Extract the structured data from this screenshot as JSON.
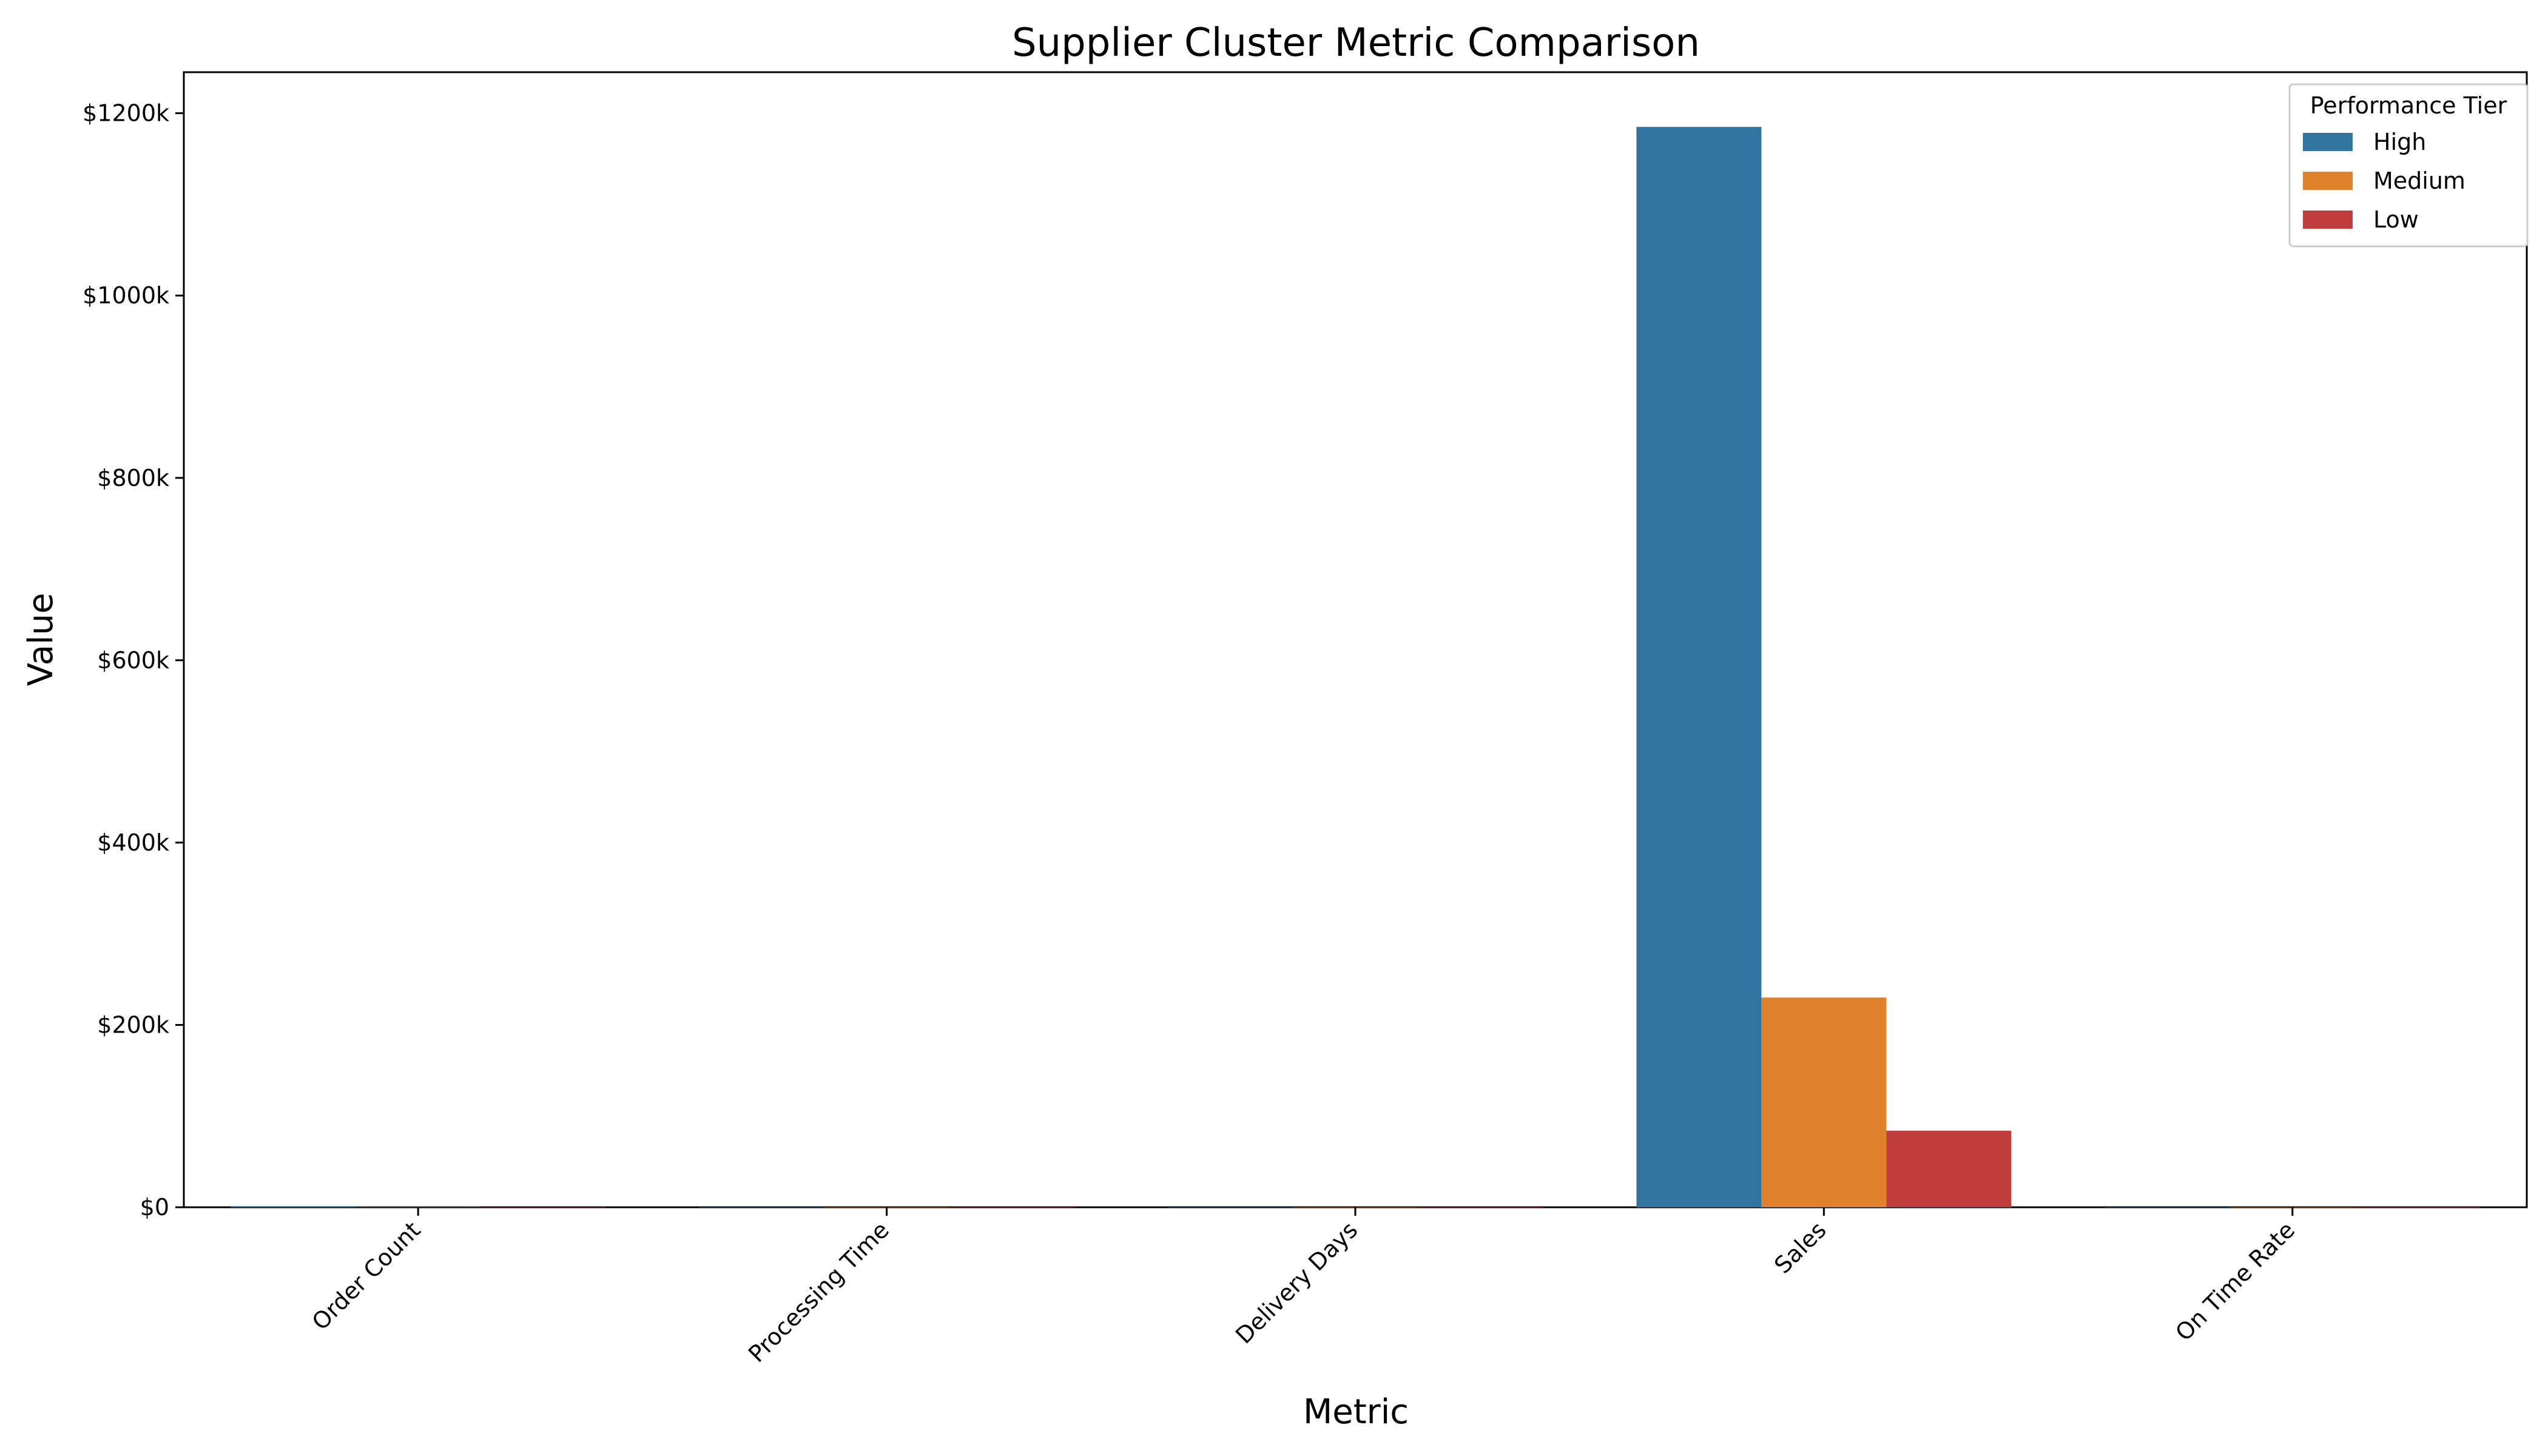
{
  "chart_data": {
    "type": "bar",
    "title": "Supplier Cluster Metric Comparison",
    "xlabel": "Metric",
    "ylabel": "Value",
    "categories": [
      "Order Count",
      "Processing Time",
      "Delivery Days",
      "Sales",
      "On Time Rate"
    ],
    "ylim": [
      0,
      1245000
    ],
    "yticks": [
      0,
      200000,
      400000,
      600000,
      800000,
      1000000,
      1200000
    ],
    "ytick_labels": [
      "$0",
      "$200k",
      "$400k",
      "$600k",
      "$800k",
      "$1000k",
      "$1200k"
    ],
    "legend": {
      "title": "Performance Tier",
      "position": "top-right"
    },
    "grid": false,
    "series": [
      {
        "name": "High",
        "color": "#3274a1",
        "values": [
          1200,
          5,
          4,
          1185000,
          0.95
        ]
      },
      {
        "name": "Medium",
        "color": "#e1812c",
        "values": [
          300,
          6,
          5,
          230000,
          0.85
        ]
      },
      {
        "name": "Low",
        "color": "#c03d3e",
        "values": [
          100,
          8,
          7,
          84000,
          0.7
        ]
      }
    ]
  }
}
